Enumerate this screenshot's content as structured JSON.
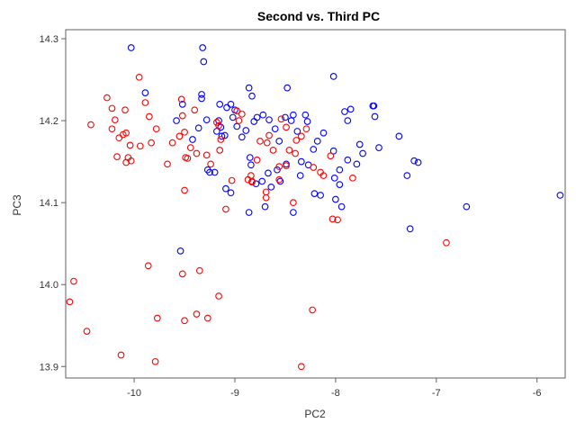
{
  "chart_data": {
    "type": "scatter",
    "title": "Second vs. Third PC",
    "xlabel": "PC2",
    "ylabel": "PC3",
    "xlim": [
      -10.68,
      -5.72
    ],
    "ylim": [
      13.886,
      14.311
    ],
    "xticks": [
      -10,
      -9,
      -8,
      -7,
      -6
    ],
    "xtick_labels": [
      "-10",
      "-9",
      "-8",
      "-7",
      "-6"
    ],
    "yticks": [
      13.9,
      14.0,
      14.1,
      14.2,
      14.3
    ],
    "ytick_labels": [
      "13.9",
      "14.0",
      "14.1",
      "14.2",
      "14.3"
    ],
    "grid": false,
    "series": [
      {
        "color": "#0000ff",
        "marker": "open-circle",
        "points": [
          [
            -10.03,
            14.289
          ],
          [
            -9.32,
            14.289
          ],
          [
            -9.31,
            14.272
          ],
          [
            -9.58,
            14.2
          ],
          [
            -9.52,
            14.22
          ],
          [
            -9.33,
            14.232
          ],
          [
            -9.15,
            14.22
          ],
          [
            -9.08,
            14.216
          ],
          [
            -9.04,
            14.22
          ],
          [
            -9.0,
            14.213
          ],
          [
            -8.86,
            14.24
          ],
          [
            -8.83,
            14.23
          ],
          [
            -8.48,
            14.24
          ],
          [
            -8.3,
            14.207
          ],
          [
            -8.02,
            14.254
          ],
          [
            -7.85,
            14.214
          ],
          [
            -7.63,
            14.218
          ],
          [
            -7.62,
            14.218
          ],
          [
            -7.61,
            14.205
          ],
          [
            -7.91,
            14.211
          ],
          [
            -7.88,
            14.2
          ],
          [
            -9.89,
            14.234
          ],
          [
            -9.54,
            14.041
          ],
          [
            -9.42,
            14.177
          ],
          [
            -9.36,
            14.191
          ],
          [
            -9.33,
            14.227
          ],
          [
            -9.28,
            14.201
          ],
          [
            -9.18,
            14.187
          ],
          [
            -9.16,
            14.2
          ],
          [
            -9.14,
            14.192
          ],
          [
            -9.13,
            14.181
          ],
          [
            -9.1,
            14.182
          ],
          [
            -9.02,
            14.204
          ],
          [
            -8.98,
            14.193
          ],
          [
            -8.93,
            14.18
          ],
          [
            -8.89,
            14.188
          ],
          [
            -8.81,
            14.199
          ],
          [
            -8.78,
            14.204
          ],
          [
            -8.72,
            14.207
          ],
          [
            -8.66,
            14.201
          ],
          [
            -8.6,
            14.19
          ],
          [
            -8.56,
            14.175
          ],
          [
            -8.5,
            14.204
          ],
          [
            -8.44,
            14.2
          ],
          [
            -8.42,
            14.207
          ],
          [
            -8.38,
            14.187
          ],
          [
            -8.28,
            14.199
          ],
          [
            -8.22,
            14.165
          ],
          [
            -8.18,
            14.175
          ],
          [
            -8.12,
            14.185
          ],
          [
            -8.02,
            14.163
          ],
          [
            -7.96,
            14.14
          ],
          [
            -7.88,
            14.152
          ],
          [
            -7.79,
            14.147
          ],
          [
            -7.76,
            14.171
          ],
          [
            -7.73,
            14.16
          ],
          [
            -7.57,
            14.167
          ],
          [
            -7.37,
            14.181
          ],
          [
            -7.29,
            14.133
          ],
          [
            -7.22,
            14.151
          ],
          [
            -7.18,
            14.149
          ],
          [
            -9.27,
            14.14
          ],
          [
            -9.25,
            14.137
          ],
          [
            -9.2,
            14.137
          ],
          [
            -9.09,
            14.117
          ],
          [
            -9.04,
            14.112
          ],
          [
            -8.85,
            14.155
          ],
          [
            -8.84,
            14.146
          ],
          [
            -8.79,
            14.123
          ],
          [
            -8.73,
            14.126
          ],
          [
            -8.7,
            14.095
          ],
          [
            -8.67,
            14.136
          ],
          [
            -8.64,
            14.119
          ],
          [
            -8.58,
            14.14
          ],
          [
            -8.55,
            14.126
          ],
          [
            -8.49,
            14.147
          ],
          [
            -8.42,
            14.088
          ],
          [
            -8.35,
            14.133
          ],
          [
            -8.27,
            14.146
          ],
          [
            -8.21,
            14.111
          ],
          [
            -8.15,
            14.109
          ],
          [
            -8.0,
            14.104
          ],
          [
            -8.01,
            14.13
          ],
          [
            -7.96,
            14.122
          ],
          [
            -7.94,
            14.095
          ],
          [
            -8.86,
            14.088
          ],
          [
            -7.26,
            14.068
          ],
          [
            -6.7,
            14.095
          ],
          [
            -5.77,
            14.109
          ],
          [
            -8.34,
            14.15
          ]
        ]
      },
      {
        "color": "#ff0000",
        "marker": "open-circle",
        "points": [
          [
            -10.27,
            14.228
          ],
          [
            -10.22,
            14.215
          ],
          [
            -10.19,
            14.201
          ],
          [
            -10.43,
            14.195
          ],
          [
            -10.22,
            14.19
          ],
          [
            -10.15,
            14.179
          ],
          [
            -10.11,
            14.183
          ],
          [
            -10.08,
            14.185
          ],
          [
            -10.09,
            14.213
          ],
          [
            -10.04,
            14.17
          ],
          [
            -10.06,
            14.155
          ],
          [
            -10.17,
            14.156
          ],
          [
            -10.08,
            14.149
          ],
          [
            -10.03,
            14.151
          ],
          [
            -9.94,
            14.169
          ],
          [
            -9.95,
            14.253
          ],
          [
            -9.89,
            14.222
          ],
          [
            -9.85,
            14.205
          ],
          [
            -9.78,
            14.19
          ],
          [
            -9.83,
            14.173
          ],
          [
            -9.62,
            14.173
          ],
          [
            -9.67,
            14.147
          ],
          [
            -9.55,
            14.181
          ],
          [
            -9.53,
            14.226
          ],
          [
            -9.52,
            14.206
          ],
          [
            -9.5,
            14.186
          ],
          [
            -9.49,
            14.155
          ],
          [
            -9.47,
            14.154
          ],
          [
            -9.44,
            14.167
          ],
          [
            -9.4,
            14.213
          ],
          [
            -9.38,
            14.16
          ],
          [
            -9.28,
            14.158
          ],
          [
            -9.24,
            14.147
          ],
          [
            -9.15,
            14.164
          ],
          [
            -9.14,
            14.177
          ],
          [
            -9.16,
            14.194
          ],
          [
            -9.03,
            14.127
          ],
          [
            -8.93,
            14.208
          ],
          [
            -8.96,
            14.2
          ],
          [
            -8.84,
            14.133
          ],
          [
            -8.83,
            14.126
          ],
          [
            -8.75,
            14.175
          ],
          [
            -8.68,
            14.173
          ],
          [
            -8.66,
            14.182
          ],
          [
            -8.62,
            14.164
          ],
          [
            -8.56,
            14.144
          ],
          [
            -8.54,
            14.202
          ],
          [
            -8.49,
            14.192
          ],
          [
            -8.46,
            14.164
          ],
          [
            -8.39,
            14.176
          ],
          [
            -8.34,
            14.181
          ],
          [
            -8.29,
            14.19
          ],
          [
            -8.22,
            14.143
          ],
          [
            -8.15,
            14.137
          ],
          [
            -8.12,
            14.133
          ],
          [
            -8.05,
            14.157
          ],
          [
            -8.03,
            14.08
          ],
          [
            -7.98,
            14.079
          ],
          [
            -7.83,
            14.13
          ],
          [
            -8.83,
            14.125
          ],
          [
            -8.69,
            14.113
          ],
          [
            -8.69,
            14.106
          ],
          [
            -8.56,
            14.128
          ],
          [
            -8.42,
            14.1
          ],
          [
            -8.4,
            14.16
          ],
          [
            -8.49,
            14.145
          ],
          [
            -9.5,
            14.115
          ],
          [
            -9.09,
            14.092
          ],
          [
            -6.9,
            14.051
          ],
          [
            -10.6,
            14.004
          ],
          [
            -10.64,
            13.979
          ],
          [
            -10.47,
            13.943
          ],
          [
            -10.13,
            13.914
          ],
          [
            -9.86,
            14.023
          ],
          [
            -9.77,
            13.959
          ],
          [
            -9.79,
            13.906
          ],
          [
            -9.52,
            14.013
          ],
          [
            -9.5,
            13.956
          ],
          [
            -9.35,
            14.017
          ],
          [
            -9.38,
            13.964
          ],
          [
            -9.27,
            13.959
          ],
          [
            -9.16,
            13.986
          ],
          [
            -8.23,
            13.969
          ],
          [
            -8.34,
            13.9
          ],
          [
            -8.98,
            14.212
          ],
          [
            -9.18,
            14.198
          ],
          [
            -8.87,
            14.128
          ],
          [
            -8.78,
            14.152
          ]
        ]
      }
    ]
  }
}
